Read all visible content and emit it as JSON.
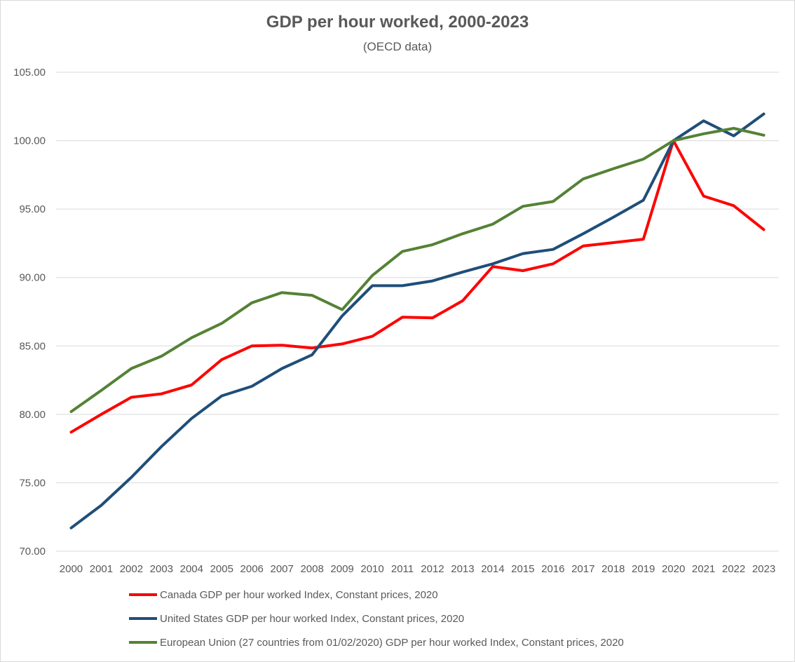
{
  "chart_data": {
    "type": "line",
    "title": "GDP per hour worked, 2000-2023",
    "subtitle": "(OECD data)",
    "xlabel": "",
    "ylabel": "",
    "ylim": [
      70,
      105
    ],
    "yticks": [
      "70.00",
      "75.00",
      "80.00",
      "85.00",
      "90.00",
      "95.00",
      "100.00",
      "105.00"
    ],
    "grid": true,
    "legend_position": "bottom",
    "categories": [
      "2000",
      "2001",
      "2002",
      "2003",
      "2004",
      "2005",
      "2006",
      "2007",
      "2008",
      "2009",
      "2010",
      "2011",
      "2012",
      "2013",
      "2014",
      "2015",
      "2016",
      "2017",
      "2018",
      "2019",
      "2020",
      "2021",
      "2022",
      "2023"
    ],
    "series": [
      {
        "name": "Canada GDP per hour worked Index, Constant prices, 2020",
        "color": "#ff0000",
        "values": [
          78.7,
          80.0,
          81.25,
          81.5,
          82.15,
          84.0,
          85.0,
          85.05,
          84.85,
          85.15,
          85.7,
          87.1,
          87.05,
          88.3,
          90.8,
          90.5,
          91.0,
          92.3,
          92.55,
          92.8,
          100.0,
          95.95,
          95.25,
          93.5
        ]
      },
      {
        "name": "United States GDP per hour worked Index, Constant prices, 2020",
        "color": "#1f4e79",
        "values": [
          71.7,
          73.35,
          75.4,
          77.65,
          79.7,
          81.35,
          82.05,
          83.35,
          84.35,
          87.2,
          89.4,
          89.4,
          89.75,
          90.4,
          91.0,
          91.75,
          92.05,
          93.2,
          94.4,
          95.65,
          100.0,
          101.45,
          100.35,
          101.95
        ]
      },
      {
        "name": "European Union (27 countries from 01/02/2020) GDP per hour worked Index, Constant prices, 2020",
        "color": "#548235",
        "values": [
          80.2,
          81.75,
          83.35,
          84.25,
          85.6,
          86.65,
          88.15,
          88.9,
          88.7,
          87.65,
          90.15,
          91.9,
          92.4,
          93.2,
          93.9,
          95.2,
          95.55,
          97.2,
          97.95,
          98.65,
          100.0,
          100.5,
          100.9,
          100.4
        ]
      }
    ]
  }
}
